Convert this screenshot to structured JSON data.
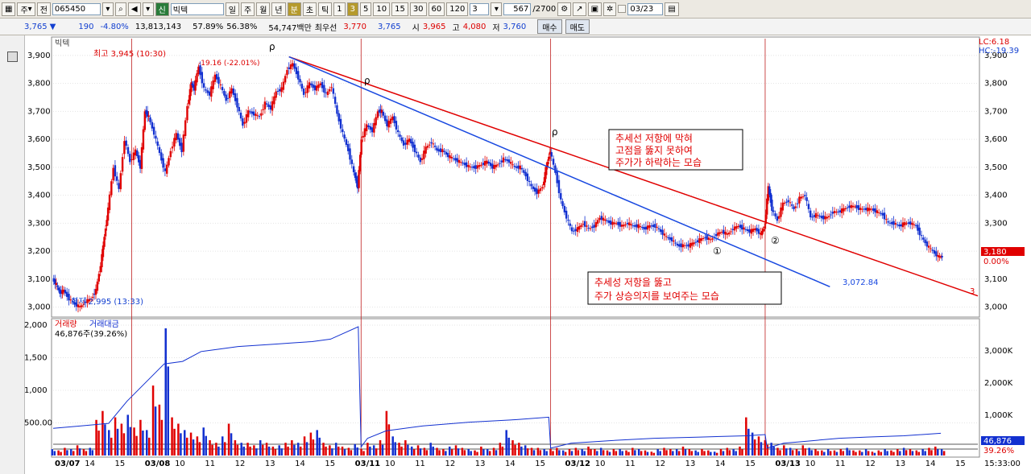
{
  "toolbar": {
    "type_label": "주",
    "prev_label": "전",
    "code": "065450",
    "credit_badge": "신",
    "stock_name": "빅텍",
    "periods": [
      "일",
      "주",
      "월",
      "년",
      "분",
      "초",
      "틱"
    ],
    "active_period": "분",
    "intervals": [
      "1",
      "3",
      "5",
      "10",
      "15",
      "30",
      "60",
      "120"
    ],
    "active_interval": "3",
    "interval_value": "3",
    "count_value": "567",
    "count_total": "/2700",
    "date_value": "03/23"
  },
  "quote": {
    "price": "3,765",
    "change": "190",
    "change_rate": "-4.80%",
    "volume": "13,813,143",
    "ratio1": "57.89%",
    "ratio2": "56.38%",
    "amount": "54,747백만",
    "best_label": "최우선",
    "best_ask": "3,770",
    "best_bid": "3,765",
    "open_label": "시",
    "open": "3,965",
    "high_label": "고",
    "high": "4,080",
    "low_label": "저",
    "low": "3,760",
    "buy_label": "매수",
    "sell_label": "매도"
  },
  "chart": {
    "legend_title": "빅텍",
    "lc": "LC:6.18",
    "hc": "HC:-19.39",
    "high_annot": "최고 3,945 (10:30)",
    "low_annot": "최저 2,995 (13:33)",
    "peak_annot": "-19.16 (-22.01%)",
    "last_price_tag": "3,180",
    "last_pct_tag": "0.00%",
    "blue_line_end": "3,072.84",
    "red_line_end": "3",
    "note1": [
      "추세선 저항에 막혀",
      "고점을 뚫지 못하여",
      "주가가 하락하는 모습"
    ],
    "note2": [
      "추세성 저항을 뚫고",
      "주가 상승의지를 보여주는 모습"
    ],
    "mark1": "①",
    "mark2": "②",
    "vol_label": "거래량",
    "amt_label": "거래대금",
    "vol_value": "46,876주(39.26%)",
    "vol_tag": "46,876",
    "vol_pct_tag": "39.26%",
    "time_label": "15:33:00"
  },
  "chart_data": {
    "type": "candlestick",
    "price_axis": {
      "ticks": [
        3000,
        3100,
        3200,
        3300,
        3400,
        3500,
        3600,
        3700,
        3800,
        3900
      ],
      "range": [
        2970,
        3960
      ]
    },
    "volume_axis": {
      "left_ticks": [
        "500.00",
        "1,000",
        "1,500",
        "2,000"
      ],
      "right_ticks": [
        "1,000K",
        "2,000K",
        "3,000K"
      ]
    },
    "x_labels": [
      "03/07",
      "14",
      "15",
      "03/08",
      "10",
      "11",
      "12",
      "13",
      "14",
      "15",
      "03/11",
      "10",
      "11",
      "12",
      "13",
      "14",
      "15",
      "03/12",
      "10",
      "11",
      "12",
      "13",
      "14",
      "15",
      "03/13",
      "10",
      "11",
      "12",
      "13",
      "14",
      "15"
    ],
    "price_path": [
      [
        0,
        3100
      ],
      [
        0.004,
        3080
      ],
      [
        0.008,
        3050
      ],
      [
        0.012,
        3060
      ],
      [
        0.018,
        3030
      ],
      [
        0.024,
        3010
      ],
      [
        0.03,
        3000
      ],
      [
        0.036,
        3020
      ],
      [
        0.042,
        3030
      ],
      [
        0.047,
        3060
      ],
      [
        0.052,
        3150
      ],
      [
        0.056,
        3250
      ],
      [
        0.06,
        3350
      ],
      [
        0.066,
        3500
      ],
      [
        0.072,
        3420
      ],
      [
        0.078,
        3600
      ],
      [
        0.084,
        3520
      ],
      [
        0.09,
        3560
      ],
      [
        0.095,
        3500
      ],
      [
        0.1,
        3700
      ],
      [
        0.104,
        3680
      ],
      [
        0.11,
        3620
      ],
      [
        0.116,
        3550
      ],
      [
        0.122,
        3480
      ],
      [
        0.128,
        3560
      ],
      [
        0.134,
        3620
      ],
      [
        0.14,
        3560
      ],
      [
        0.146,
        3720
      ],
      [
        0.15,
        3800
      ],
      [
        0.153,
        3780
      ],
      [
        0.158,
        3860
      ],
      [
        0.164,
        3780
      ],
      [
        0.17,
        3760
      ],
      [
        0.176,
        3830
      ],
      [
        0.182,
        3790
      ],
      [
        0.188,
        3740
      ],
      [
        0.194,
        3780
      ],
      [
        0.2,
        3720
      ],
      [
        0.206,
        3650
      ],
      [
        0.212,
        3700
      ],
      [
        0.218,
        3690
      ],
      [
        0.224,
        3680
      ],
      [
        0.23,
        3730
      ],
      [
        0.236,
        3710
      ],
      [
        0.242,
        3770
      ],
      [
        0.248,
        3780
      ],
      [
        0.254,
        3850
      ],
      [
        0.26,
        3870
      ],
      [
        0.266,
        3820
      ],
      [
        0.272,
        3760
      ],
      [
        0.278,
        3800
      ],
      [
        0.284,
        3780
      ],
      [
        0.29,
        3800
      ],
      [
        0.296,
        3760
      ],
      [
        0.302,
        3790
      ],
      [
        0.308,
        3690
      ],
      [
        0.314,
        3620
      ],
      [
        0.32,
        3560
      ],
      [
        0.326,
        3480
      ],
      [
        0.33,
        3430
      ],
      [
        0.334,
        3600
      ],
      [
        0.34,
        3650
      ],
      [
        0.346,
        3630
      ],
      [
        0.352,
        3700
      ],
      [
        0.356,
        3700
      ],
      [
        0.362,
        3650
      ],
      [
        0.368,
        3680
      ],
      [
        0.374,
        3620
      ],
      [
        0.38,
        3580
      ],
      [
        0.386,
        3600
      ],
      [
        0.392,
        3560
      ],
      [
        0.398,
        3520
      ],
      [
        0.404,
        3570
      ],
      [
        0.41,
        3590
      ],
      [
        0.416,
        3560
      ],
      [
        0.422,
        3560
      ],
      [
        0.428,
        3540
      ],
      [
        0.434,
        3530
      ],
      [
        0.44,
        3520
      ],
      [
        0.446,
        3510
      ],
      [
        0.452,
        3500
      ],
      [
        0.458,
        3500
      ],
      [
        0.464,
        3510
      ],
      [
        0.47,
        3520
      ],
      [
        0.476,
        3500
      ],
      [
        0.482,
        3510
      ],
      [
        0.488,
        3530
      ],
      [
        0.494,
        3520
      ],
      [
        0.5,
        3500
      ],
      [
        0.506,
        3500
      ],
      [
        0.512,
        3470
      ],
      [
        0.518,
        3430
      ],
      [
        0.524,
        3410
      ],
      [
        0.53,
        3430
      ],
      [
        0.534,
        3500
      ],
      [
        0.538,
        3560
      ],
      [
        0.544,
        3480
      ],
      [
        0.55,
        3380
      ],
      [
        0.556,
        3320
      ],
      [
        0.562,
        3270
      ],
      [
        0.568,
        3280
      ],
      [
        0.574,
        3300
      ],
      [
        0.58,
        3280
      ],
      [
        0.586,
        3290
      ],
      [
        0.592,
        3320
      ],
      [
        0.598,
        3310
      ],
      [
        0.604,
        3300
      ],
      [
        0.61,
        3300
      ],
      [
        0.616,
        3290
      ],
      [
        0.622,
        3300
      ],
      [
        0.628,
        3290
      ],
      [
        0.634,
        3290
      ],
      [
        0.64,
        3280
      ],
      [
        0.646,
        3290
      ],
      [
        0.652,
        3290
      ],
      [
        0.658,
        3270
      ],
      [
        0.664,
        3250
      ],
      [
        0.67,
        3240
      ],
      [
        0.676,
        3220
      ],
      [
        0.682,
        3220
      ],
      [
        0.688,
        3220
      ],
      [
        0.694,
        3230
      ],
      [
        0.7,
        3240
      ],
      [
        0.706,
        3250
      ],
      [
        0.712,
        3240
      ],
      [
        0.718,
        3260
      ],
      [
        0.724,
        3270
      ],
      [
        0.73,
        3260
      ],
      [
        0.736,
        3280
      ],
      [
        0.742,
        3290
      ],
      [
        0.748,
        3280
      ],
      [
        0.754,
        3270
      ],
      [
        0.76,
        3280
      ],
      [
        0.766,
        3260
      ],
      [
        0.77,
        3290
      ],
      [
        0.774,
        3430
      ],
      [
        0.778,
        3350
      ],
      [
        0.784,
        3310
      ],
      [
        0.79,
        3370
      ],
      [
        0.796,
        3380
      ],
      [
        0.802,
        3350
      ],
      [
        0.808,
        3390
      ],
      [
        0.814,
        3400
      ],
      [
        0.82,
        3320
      ],
      [
        0.826,
        3330
      ],
      [
        0.832,
        3320
      ],
      [
        0.838,
        3320
      ],
      [
        0.844,
        3340
      ],
      [
        0.85,
        3340
      ],
      [
        0.856,
        3350
      ],
      [
        0.862,
        3360
      ],
      [
        0.868,
        3360
      ],
      [
        0.874,
        3350
      ],
      [
        0.88,
        3350
      ],
      [
        0.886,
        3350
      ],
      [
        0.892,
        3340
      ],
      [
        0.898,
        3330
      ],
      [
        0.904,
        3300
      ],
      [
        0.91,
        3300
      ],
      [
        0.916,
        3290
      ],
      [
        0.922,
        3300
      ],
      [
        0.928,
        3300
      ],
      [
        0.934,
        3290
      ],
      [
        0.94,
        3250
      ],
      [
        0.946,
        3220
      ],
      [
        0.952,
        3200
      ],
      [
        0.958,
        3180
      ],
      [
        0.962,
        3180
      ]
    ],
    "volume_profile": [
      0.05,
      0.04,
      0.06,
      0.05,
      0.08,
      0.05,
      0.06,
      0.28,
      0.35,
      0.2,
      0.3,
      0.25,
      0.32,
      0.22,
      0.28,
      0.2,
      0.55,
      0.4,
      1.0,
      0.3,
      0.25,
      0.2,
      0.18,
      0.15,
      0.22,
      0.12,
      0.1,
      0.15,
      0.25,
      0.12,
      0.1,
      0.1,
      0.08,
      0.12,
      0.1,
      0.07,
      0.08,
      0.1,
      0.12,
      0.1,
      0.15,
      0.18,
      0.2,
      0.1,
      0.08,
      0.1,
      0.07,
      0.06,
      0.09,
      0.05,
      0.1,
      0.08,
      0.12,
      0.35,
      0.15,
      0.1,
      0.12,
      0.07,
      0.08,
      0.06,
      0.1,
      0.06,
      0.05,
      0.07,
      0.08,
      0.06,
      0.05,
      0.04,
      0.07,
      0.05,
      0.06,
      0.1,
      0.2,
      0.12,
      0.1,
      0.08,
      0.06,
      0.06,
      0.05,
      0.05,
      0.06,
      0.04,
      0.05,
      0.06,
      0.05,
      0.07,
      0.05,
      0.06,
      0.04,
      0.05,
      0.05,
      0.04,
      0.06,
      0.05,
      0.04,
      0.03,
      0.05,
      0.06,
      0.05,
      0.05,
      0.07,
      0.05,
      0.04,
      0.05,
      0.04,
      0.03,
      0.05,
      0.06,
      0.05,
      0.07,
      0.3,
      0.18,
      0.15,
      0.12,
      0.1,
      0.06,
      0.08,
      0.06,
      0.05,
      0.08,
      0.06,
      0.05,
      0.04,
      0.05,
      0.04,
      0.05,
      0.06,
      0.04,
      0.04,
      0.05,
      0.03,
      0.04,
      0.05,
      0.04,
      0.05,
      0.06,
      0.05,
      0.04,
      0.05,
      0.06,
      0.07,
      0.05
    ],
    "cumulative_amount": [
      [
        0,
        0.18
      ],
      [
        0.03,
        0.2
      ],
      [
        0.06,
        0.22
      ],
      [
        0.08,
        0.4
      ],
      [
        0.1,
        0.55
      ],
      [
        0.12,
        0.7
      ],
      [
        0.14,
        0.72
      ],
      [
        0.16,
        0.8
      ],
      [
        0.18,
        0.82
      ],
      [
        0.2,
        0.84
      ],
      [
        0.22,
        0.85
      ],
      [
        0.24,
        0.86
      ],
      [
        0.26,
        0.87
      ],
      [
        0.28,
        0.88
      ],
      [
        0.3,
        0.9
      ],
      [
        0.33,
        1.0
      ],
      [
        0.333,
        0.03
      ],
      [
        0.34,
        0.1
      ],
      [
        0.36,
        0.16
      ],
      [
        0.4,
        0.2
      ],
      [
        0.45,
        0.23
      ],
      [
        0.5,
        0.25
      ],
      [
        0.536,
        0.27
      ],
      [
        0.538,
        0.02
      ],
      [
        0.56,
        0.06
      ],
      [
        0.6,
        0.08
      ],
      [
        0.65,
        0.1
      ],
      [
        0.7,
        0.11
      ],
      [
        0.75,
        0.12
      ],
      [
        0.77,
        0.13
      ],
      [
        0.772,
        0.02
      ],
      [
        0.79,
        0.06
      ],
      [
        0.82,
        0.08
      ],
      [
        0.85,
        0.1
      ],
      [
        0.88,
        0.11
      ],
      [
        0.92,
        0.12
      ],
      [
        0.96,
        0.14
      ]
    ],
    "trendlines": [
      {
        "name": "red",
        "from": [
          0.255,
          3895
        ],
        "to": [
          1.0,
          3040
        ],
        "color": "#e00000"
      },
      {
        "name": "blue",
        "from": [
          0.255,
          3895
        ],
        "to": [
          0.84,
          3072.84
        ],
        "color": "#1848e0"
      }
    ],
    "session_separators": [
      0.085,
      0.333,
      0.538,
      0.77
    ]
  }
}
